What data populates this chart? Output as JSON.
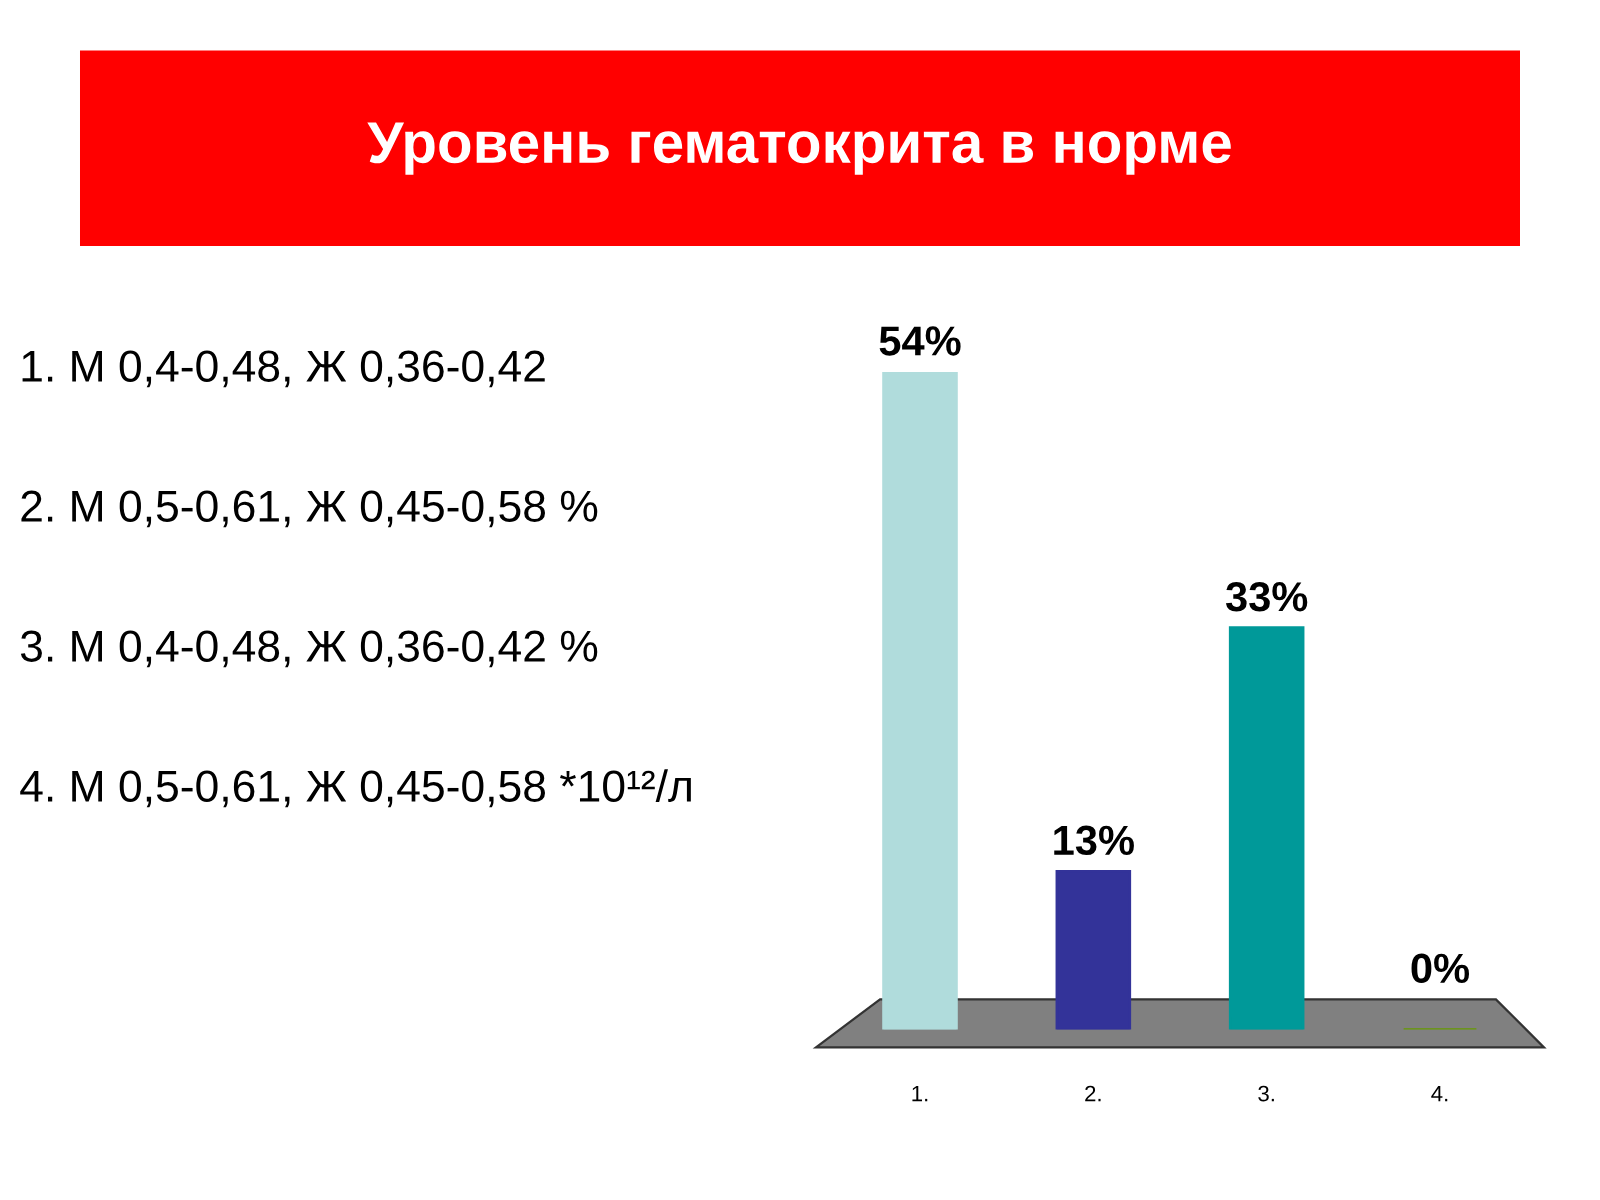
{
  "chart_data": {
    "type": "bar",
    "title": "Уровень гематокрита в норме",
    "annotations": [
      "1. М 0,4-0,48, Ж 0,36-0,42",
      "2. М 0,5-0,61, Ж 0,45-0,58 %",
      "3. М 0,4-0,48, Ж 0,36-0,42 %",
      "4. М 0,5-0,61, Ж 0,45-0,58 *10¹²/л"
    ],
    "categories": [
      "1.",
      "2.",
      "3.",
      "4."
    ],
    "values": [
      54,
      13,
      33,
      0
    ],
    "colors": [
      "#b0dcdc",
      "#333399",
      "#009999",
      "#669900"
    ],
    "value_labels": [
      "54%",
      "13%",
      "33%",
      "0%"
    ]
  }
}
